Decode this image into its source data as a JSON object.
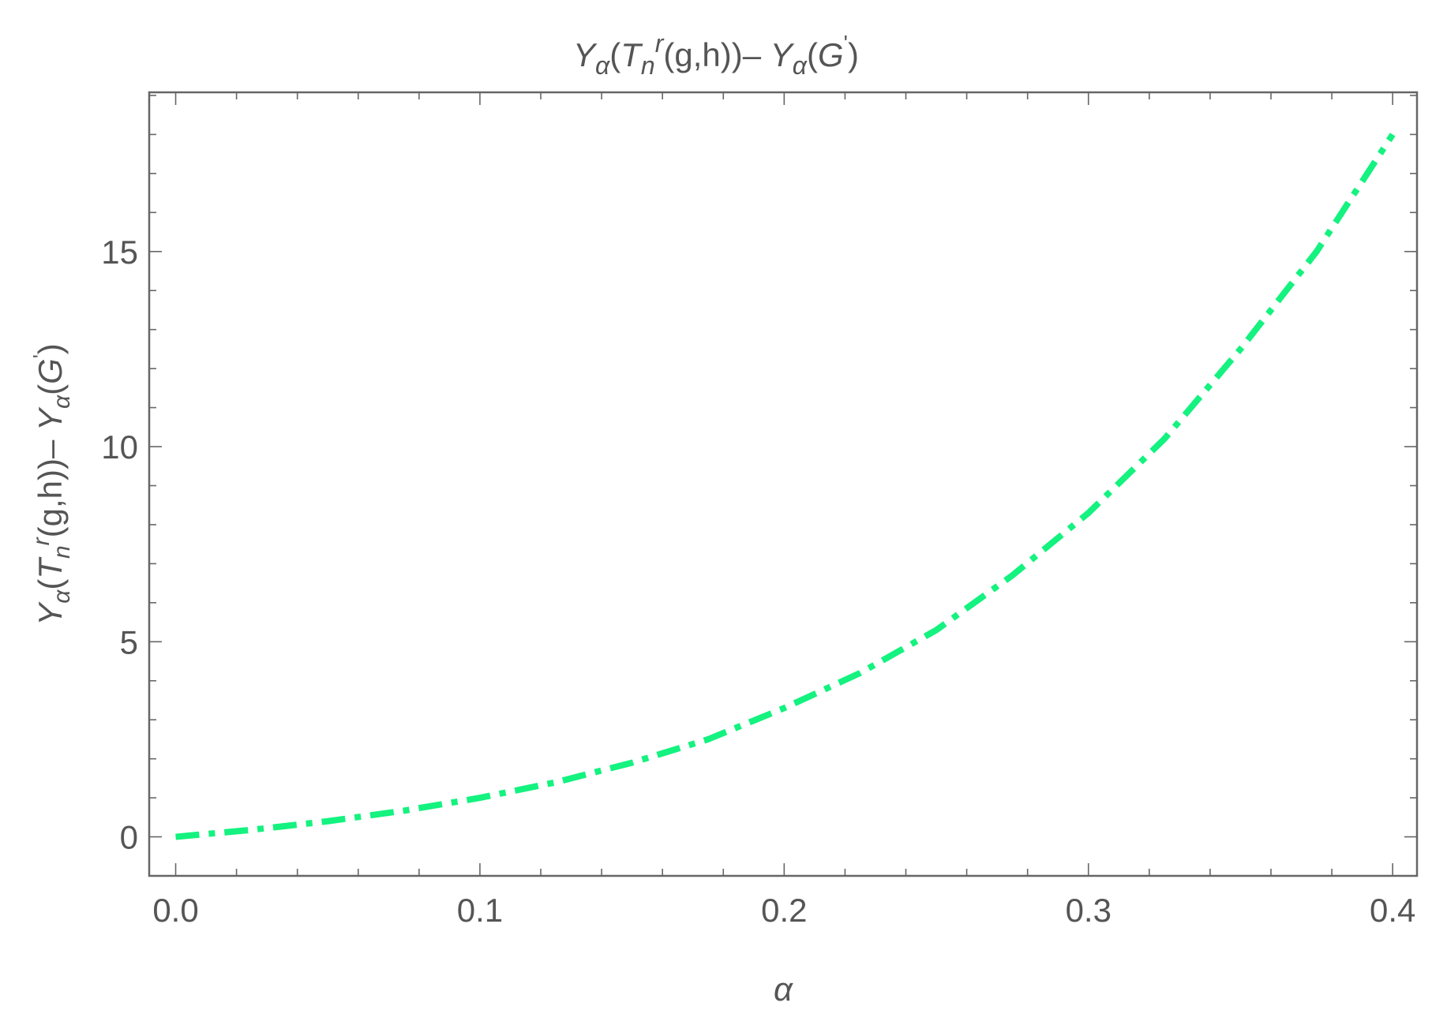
{
  "chart_data": {
    "type": "line",
    "title": [
      "Y",
      "α",
      "(",
      "T",
      "n",
      "r",
      "(g,h))– ",
      "Y",
      "α",
      "(",
      "G",
      "'",
      ")"
    ],
    "ylabel": [
      "Y",
      "α",
      "(",
      "T",
      "n",
      "r",
      "(g,h))– ",
      "Y",
      "α",
      "(",
      "G",
      "'",
      ")"
    ],
    "xlabel": "α",
    "x": [
      0,
      0.025,
      0.05,
      0.075,
      0.1,
      0.125,
      0.15,
      0.175,
      0.2,
      0.225,
      0.25,
      0.275,
      0.3,
      0.325,
      0.35,
      0.375,
      0.4
    ],
    "series": [
      {
        "color": "#14f27f",
        "values": [
          0,
          0.18,
          0.4,
          0.67,
          1.0,
          1.4,
          1.9,
          2.5,
          3.3,
          4.2,
          5.3,
          6.7,
          8.3,
          10.2,
          12.5,
          15.0,
          18.0
        ]
      }
    ],
    "xlim": [
      -0.0087,
      0.408
    ],
    "ylim": [
      -1.0,
      19.08
    ],
    "xticks": [
      {
        "value": 0,
        "label": "0.0"
      },
      0.1,
      0.2,
      0.3,
      0.4
    ],
    "yticks": [
      0,
      5,
      10,
      15
    ],
    "xminorticks": [
      0.02,
      0.04,
      0.06,
      0.08,
      0.12,
      0.14,
      0.16,
      0.18,
      0.22,
      0.24,
      0.26,
      0.28,
      0.32,
      0.34,
      0.36,
      0.38
    ],
    "yminorticks": [
      1,
      2,
      3,
      4,
      6,
      7,
      8,
      9,
      11,
      12,
      13,
      14,
      16,
      17,
      18,
      19
    ],
    "grid": false
  }
}
